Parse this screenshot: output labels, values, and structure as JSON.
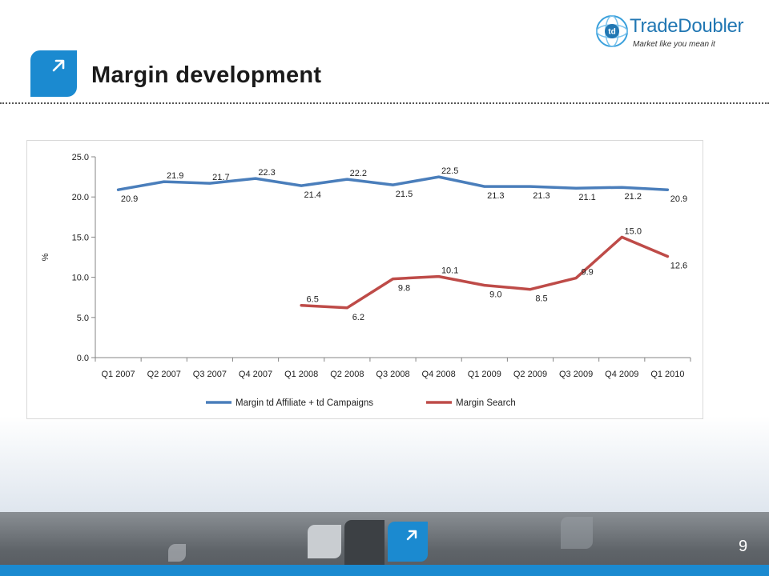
{
  "slide": {
    "title": "Margin development",
    "page_number": "9"
  },
  "logo": {
    "name": "TradeDoubler",
    "tagline": "Market like you mean it",
    "badge_text": "td"
  },
  "colors": {
    "accent": "#1b8ad0",
    "series_affiliate": "#4a7ebb",
    "series_search": "#be4b48"
  },
  "chart_data": {
    "type": "line",
    "title": "",
    "xlabel": "",
    "ylabel": "%",
    "ylim": [
      0,
      25
    ],
    "yticks": [
      "0.0",
      "5.0",
      "10.0",
      "15.0",
      "20.0",
      "25.0"
    ],
    "categories": [
      "Q1 2007",
      "Q2 2007",
      "Q3 2007",
      "Q4 2007",
      "Q1 2008",
      "Q2 2008",
      "Q3 2008",
      "Q4 2008",
      "Q1 2009",
      "Q2 2009",
      "Q3 2009",
      "Q4 2009",
      "Q1 2010"
    ],
    "grid": false,
    "legend_position": "bottom",
    "series": [
      {
        "name": "Margin td Affiliate + td Campaigns",
        "values": [
          20.9,
          21.9,
          21.7,
          22.3,
          21.4,
          22.2,
          21.5,
          22.5,
          21.3,
          21.3,
          21.1,
          21.2,
          20.9
        ],
        "labels": [
          "20.9",
          "21.9",
          "21.7",
          "22.3",
          "21.4",
          "22.2",
          "21.5",
          "22.5",
          "21.3",
          "21.3",
          "21.1",
          "21.2",
          "20.9"
        ]
      },
      {
        "name": "Margin Search",
        "values": [
          null,
          null,
          null,
          null,
          6.5,
          6.2,
          9.8,
          10.1,
          9.0,
          8.5,
          9.9,
          15.0,
          12.6
        ],
        "labels": [
          null,
          null,
          null,
          null,
          "6.5",
          "6.2",
          "9.8",
          "10.1",
          "9.0",
          "8.5",
          "9.9",
          "15.0",
          "12.6"
        ]
      }
    ]
  }
}
